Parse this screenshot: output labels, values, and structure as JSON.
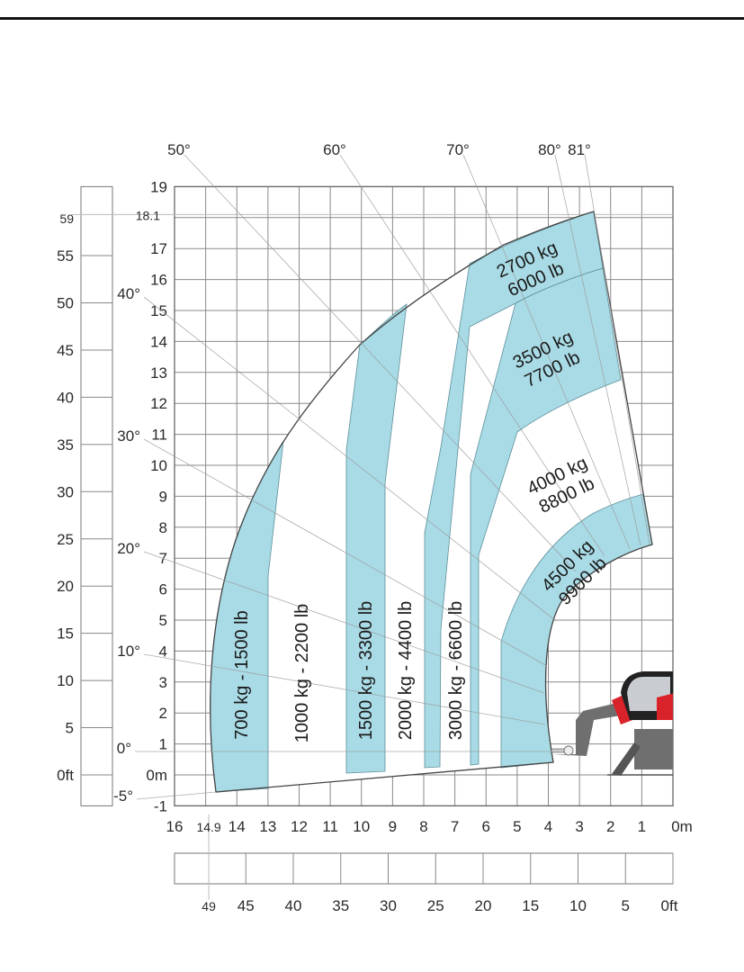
{
  "chart_data": {
    "type": "area",
    "title": "",
    "xlabel": "",
    "ylabel": "",
    "xlim": [
      16,
      0
    ],
    "ylim": [
      -1,
      19
    ],
    "grid": true,
    "x_ticks_m": [
      "16",
      "14.9",
      "14",
      "13",
      "12",
      "11",
      "10",
      "9",
      "8",
      "7",
      "6",
      "5",
      "4",
      "3",
      "2",
      "1",
      "0m"
    ],
    "y_ticks_m": [
      "19",
      "18.1",
      "17",
      "16",
      "15",
      "14",
      "13",
      "12",
      "11",
      "10",
      "9",
      "8",
      "7",
      "6",
      "5",
      "4",
      "3",
      "2",
      "1",
      "0m",
      "-1"
    ],
    "x_ticks_ft": [
      "49",
      "45",
      "40",
      "35",
      "30",
      "25",
      "20",
      "15",
      "10",
      "5",
      "0ft"
    ],
    "y_ticks_ft": [
      "59",
      "55",
      "50",
      "45",
      "40",
      "35",
      "30",
      "25",
      "20",
      "15",
      "10",
      "5",
      "0ft"
    ],
    "max_height_m": 18.1,
    "max_height_ft": 59,
    "max_reach_m": 14.9,
    "max_reach_ft": 49,
    "boom_angles": [
      "50°",
      "60°",
      "70°",
      "80°",
      "81°",
      "40°",
      "30°",
      "20°",
      "10°",
      "0°",
      "-5°"
    ],
    "load_zones": [
      {
        "label": "700 kg - 1500 lb",
        "fill": "#a9dbe6"
      },
      {
        "label": "1000 kg - 2200 lb",
        "fill": "#ffffff"
      },
      {
        "label": "1500 kg - 3300 lb",
        "fill": "#a9dbe6"
      },
      {
        "label": "2000 kg - 4400 lb",
        "fill": "#ffffff"
      },
      {
        "label": "3000 kg - 6600 lb",
        "fill": "#ffffff"
      },
      {
        "label_kg": "2700 kg",
        "label_lb": "6000 lb",
        "fill": "#a9dbe6"
      },
      {
        "label_kg": "3500 kg",
        "label_lb": "7700 lb",
        "fill": "#a9dbe6"
      },
      {
        "label_kg": "4000 kg",
        "label_lb": "8800 lb",
        "fill": "#ffffff"
      },
      {
        "label_kg": "4500 kg",
        "label_lb": "9900 lb",
        "fill": "#a9dbe6"
      }
    ],
    "colors": {
      "zone_blue": "#a9dbe6",
      "grid": "#8a8a8a",
      "machine_red": "#d9232a",
      "machine_gray": "#6f6f6f"
    }
  }
}
